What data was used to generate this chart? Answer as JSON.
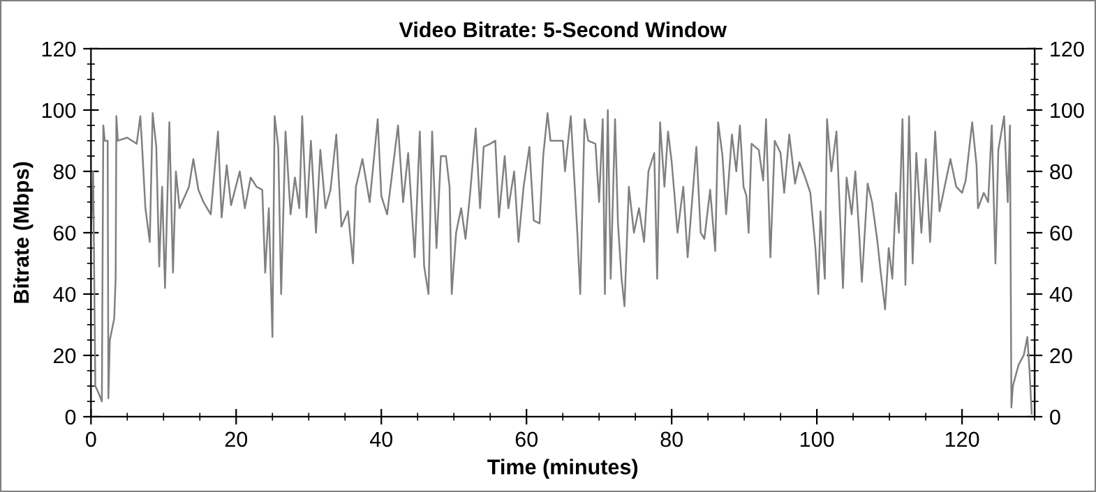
{
  "chart_data": {
    "type": "line",
    "title": "Video Bitrate: 5-Second Window",
    "xlabel": "Time (minutes)",
    "ylabel": "Bitrate (Mbps)",
    "xlim": [
      0,
      130
    ],
    "xticks": [
      0,
      20,
      40,
      60,
      80,
      100,
      120
    ],
    "ylim": [
      0,
      120
    ],
    "yticks": [
      0,
      20,
      40,
      60,
      80,
      100,
      120
    ],
    "y2lim": [
      0,
      120
    ],
    "y2ticks": [
      0,
      20,
      40,
      60,
      80,
      100,
      120
    ],
    "grid": false,
    "marker": "none",
    "line_style": "solid",
    "series": [
      {
        "color": "#808080",
        "x": [
          0,
          0.3,
          0.6,
          1.0,
          1.5,
          1.7,
          1.9,
          2.3,
          2.4,
          2.6,
          3.2,
          3.4,
          3.5,
          3.7,
          5,
          6.3,
          6.8,
          7.0,
          7.5,
          8.1,
          8.5,
          9,
          9.4,
          9.8,
          10.2,
          10.8,
          11.3,
          11.7,
          12.2,
          13.5,
          14.1,
          14.8,
          15.5,
          16.5,
          17.5,
          18,
          18.7,
          19.3,
          20.5,
          21.2,
          22,
          22.8,
          23.6,
          24,
          24.5,
          25,
          25.3,
          25.8,
          26.2,
          26.8,
          27.5,
          28.1,
          28.7,
          29.1,
          29.7,
          30.3,
          31,
          31.6,
          32.3,
          33,
          33.8,
          34.5,
          35.4,
          36.1,
          36.5,
          37.4,
          38.4,
          39.5,
          40,
          40.8,
          42.3,
          43,
          43.7,
          44.6,
          45.3,
          45.9,
          46.5,
          47,
          47.6,
          48.2,
          48.9,
          49.4,
          49.7,
          50.3,
          51,
          51.6,
          52.2,
          53,
          53.6,
          54.1,
          55,
          55.7,
          56.2,
          57,
          57.5,
          58.3,
          58.9,
          59.6,
          60.4,
          61,
          61.8,
          62.3,
          62.9,
          63.3,
          64,
          65,
          65.3,
          66.1,
          67,
          67.4,
          68,
          68.5,
          69.5,
          70,
          70.5,
          70.8,
          71.2,
          71.6,
          72.2,
          72.6,
          73.1,
          73.5,
          74.1,
          74.8,
          75.5,
          76.2,
          76.8,
          77.6,
          78,
          78.4,
          79,
          79.5,
          80,
          80.4,
          80.8,
          81.6,
          82.2,
          82.8,
          83.4,
          84,
          84.5,
          85.3,
          86,
          86.4,
          87,
          87.5,
          88.3,
          88.9,
          89.4,
          89.9,
          90.3,
          90.6,
          91,
          92,
          92.6,
          93,
          93.6,
          94.2,
          95,
          95.5,
          96.2,
          97,
          97.6,
          98.4,
          99.1,
          99.8,
          100.2,
          100.5,
          101.1,
          101.4,
          102,
          102.7,
          103.2,
          103.6,
          104.1,
          104.8,
          105.3,
          105.9,
          106.2,
          107,
          107.6,
          108.3,
          108.8,
          109.4,
          109.9,
          110.4,
          110.9,
          111.3,
          111.8,
          112.2,
          112.7,
          113.2,
          113.7,
          114.4,
          115,
          115.6,
          116.3,
          116.9,
          117.6,
          118.4,
          119.2,
          120,
          120.5,
          121.4,
          122,
          122.2,
          123,
          123.6,
          124.1,
          124.6,
          125,
          125.8,
          126.3,
          126.6,
          126.8,
          127,
          127.8,
          128.5,
          129,
          129.3,
          129.6
        ],
        "values": [
          60,
          80,
          10,
          8,
          5,
          95,
          90,
          90,
          6,
          25,
          32,
          45,
          98,
          90,
          91,
          89,
          98,
          90,
          68,
          57,
          99,
          88,
          49,
          75,
          42,
          96,
          47,
          80,
          68,
          75,
          84,
          74,
          70,
          66,
          93,
          65,
          82,
          69,
          80,
          68,
          78,
          75,
          74,
          47,
          68,
          26,
          98,
          88,
          40,
          93,
          66,
          78,
          68,
          98,
          65,
          90,
          60,
          87,
          68,
          74,
          92,
          62,
          67,
          50,
          75,
          84,
          70,
          97,
          72,
          66,
          95,
          70,
          86,
          52,
          93,
          49,
          40,
          93,
          55,
          85,
          85,
          75,
          40,
          60,
          68,
          58,
          72,
          94,
          68,
          88,
          89,
          90,
          65,
          85,
          68,
          80,
          57,
          75,
          88,
          64,
          63,
          85,
          99,
          90,
          90,
          90,
          80,
          98,
          60,
          40,
          97,
          90,
          89,
          70,
          97,
          40,
          100,
          45,
          97,
          63,
          45,
          36,
          75,
          60,
          68,
          57,
          80,
          86,
          45,
          96,
          75,
          93,
          83,
          72,
          60,
          75,
          52,
          70,
          88,
          60,
          58,
          74,
          54,
          96,
          85,
          66,
          92,
          80,
          95,
          75,
          72,
          60,
          89,
          87,
          77,
          97,
          52,
          90,
          86,
          73,
          92,
          76,
          83,
          78,
          73,
          55,
          40,
          67,
          45,
          97,
          80,
          93,
          65,
          42,
          78,
          66,
          80,
          57,
          44,
          76,
          70,
          58,
          47,
          35,
          55,
          45,
          73,
          60,
          97,
          43,
          98,
          50,
          86,
          60,
          84,
          57,
          93,
          67,
          75,
          84,
          75,
          73,
          77,
          96,
          82,
          68,
          73,
          70,
          95,
          50,
          87,
          98,
          70,
          95,
          3,
          10,
          17,
          20,
          26,
          15,
          1
        ]
      }
    ]
  }
}
